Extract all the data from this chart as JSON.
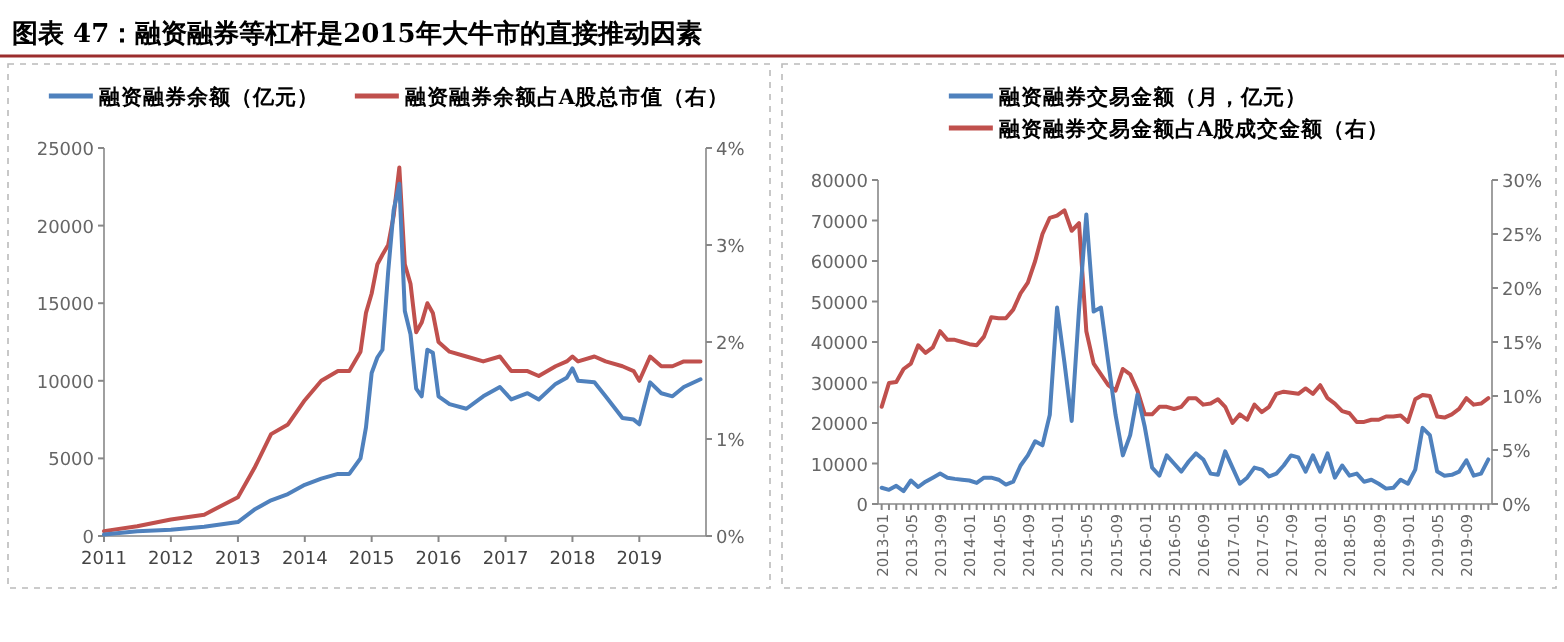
{
  "chart_data": [
    {
      "type": "line",
      "title": "图表 47：融资融券等杠杆是2015年大牛市的直接推动因素",
      "legend": "top",
      "marker": "none",
      "line_style": "solid",
      "grid": false,
      "xlim": [
        "2011-01-01",
        "2019-12-31"
      ],
      "xticks": [
        "2011",
        "2012",
        "2013",
        "2014",
        "2015",
        "2016",
        "2017",
        "2018",
        "2019"
      ],
      "ylim": [
        0,
        25000
      ],
      "yticks": [
        0,
        5000,
        10000,
        15000,
        20000,
        25000
      ],
      "y2lim": [
        0,
        4
      ],
      "y2ticks": [
        {
          "value": 0,
          "label": "0%"
        },
        {
          "value": 1,
          "label": "1%"
        },
        {
          "value": 2,
          "label": "2%"
        },
        {
          "value": 3,
          "label": "3%"
        },
        {
          "value": 4,
          "label": "4%"
        }
      ],
      "x": [
        "2011-01",
        "2011-07",
        "2012-01",
        "2012-07",
        "2013-01",
        "2013-04",
        "2013-07",
        "2013-10",
        "2014-01",
        "2014-04",
        "2014-07",
        "2014-09",
        "2014-11",
        "2014-12",
        "2015-01",
        "2015-02",
        "2015-03",
        "2015-04",
        "2015-05",
        "2015-06",
        "2015-07",
        "2015-08",
        "2015-09",
        "2015-10",
        "2015-11",
        "2015-12",
        "2016-01",
        "2016-03",
        "2016-06",
        "2016-09",
        "2016-12",
        "2017-02",
        "2017-05",
        "2017-07",
        "2017-10",
        "2017-12",
        "2018-01",
        "2018-02",
        "2018-05",
        "2018-07",
        "2018-10",
        "2018-12",
        "2019-01",
        "2019-03",
        "2019-05",
        "2019-07",
        "2019-09",
        "2019-12"
      ],
      "series": [
        {
          "name": "融资融券余额（亿元）",
          "color": "#4f81bd",
          "values": [
            100,
            300,
            400,
            600,
            900,
            1700,
            2300,
            2700,
            3300,
            3700,
            4000,
            4000,
            5000,
            7000,
            10500,
            11500,
            12000,
            17000,
            21000,
            22700,
            14500,
            13000,
            9500,
            9000,
            12000,
            11800,
            9000,
            8500,
            8200,
            9000,
            9600,
            8800,
            9200,
            8800,
            9800,
            10200,
            10800,
            10000,
            9900,
            9000,
            7600,
            7500,
            7200,
            9900,
            9200,
            9000,
            9600,
            10100
          ]
        },
        {
          "name": "融资融券余额占A股总市值（右）",
          "color": "#c0504d",
          "axis": "y2",
          "values": [
            0.05,
            0.1,
            0.17,
            0.22,
            0.4,
            0.7,
            1.05,
            1.15,
            1.4,
            1.6,
            1.7,
            1.7,
            1.9,
            2.3,
            2.5,
            2.8,
            2.9,
            3.0,
            3.3,
            3.8,
            2.8,
            2.6,
            2.1,
            2.2,
            2.4,
            2.3,
            2.0,
            1.9,
            1.85,
            1.8,
            1.85,
            1.7,
            1.7,
            1.65,
            1.75,
            1.8,
            1.85,
            1.8,
            1.85,
            1.8,
            1.75,
            1.7,
            1.6,
            1.85,
            1.75,
            1.75,
            1.8,
            1.8
          ]
        }
      ]
    },
    {
      "type": "line",
      "legend": "top",
      "marker": "none",
      "line_style": "solid",
      "grid": false,
      "categories": [
        "2013-01",
        null,
        null,
        null,
        "2013-05",
        null,
        null,
        null,
        "2013-09",
        null,
        null,
        null,
        "2014-01",
        null,
        null,
        null,
        "2014-05",
        null,
        null,
        null,
        "2014-09",
        null,
        null,
        null,
        "2015-01",
        null,
        null,
        null,
        "2015-05",
        null,
        null,
        null,
        "2015-09",
        null,
        null,
        null,
        "2016-01",
        null,
        null,
        null,
        "2016-05",
        null,
        null,
        null,
        "2016-09",
        null,
        null,
        null,
        "2017-01",
        null,
        null,
        null,
        "2017-05",
        null,
        null,
        null,
        "2017-09",
        null,
        null,
        null,
        "2018-01",
        null,
        null,
        null,
        "2018-05",
        null,
        null,
        null,
        "2018-09",
        null,
        null,
        null,
        "2019-01",
        null,
        null,
        null,
        "2019-05",
        null,
        null,
        null,
        "2019-09",
        null,
        null,
        null
      ],
      "ylim": [
        0,
        80000
      ],
      "yticks": [
        0,
        10000,
        20000,
        30000,
        40000,
        50000,
        60000,
        70000,
        80000
      ],
      "y2lim": [
        0,
        30
      ],
      "y2ticks": [
        {
          "value": 0,
          "label": "0%"
        },
        {
          "value": 5,
          "label": "5%"
        },
        {
          "value": 10,
          "label": "10%"
        },
        {
          "value": 15,
          "label": "15%"
        },
        {
          "value": 20,
          "label": "20%"
        },
        {
          "value": 25,
          "label": "25%"
        },
        {
          "value": 30,
          "label": "30%"
        }
      ],
      "series": [
        {
          "name": "融资融券交易金额（月，亿元）",
          "color": "#4f81bd",
          "values": [
            4000,
            3500,
            4500,
            3200,
            5800,
            4200,
            5500,
            6500,
            7500,
            6500,
            6200,
            6000,
            5800,
            5200,
            6500,
            6500,
            6000,
            4800,
            5500,
            9500,
            12000,
            15500,
            14500,
            22000,
            48500,
            35000,
            20500,
            48000,
            71500,
            47500,
            48500,
            35000,
            22000,
            12000,
            17000,
            27000,
            19000,
            9000,
            7000,
            12000,
            10000,
            8000,
            10500,
            12500,
            11000,
            7500,
            7200,
            13000,
            9000,
            5000,
            6500,
            9000,
            8500,
            6800,
            7500,
            9500,
            12000,
            11500,
            8000,
            12000,
            8000,
            12500,
            6500,
            9500,
            7000,
            7500,
            5500,
            6000,
            5000,
            3800,
            4000,
            6000,
            5000,
            8500,
            18800,
            17000,
            8000,
            7000,
            7200,
            8000,
            10800,
            7000,
            7500,
            11000
          ]
        },
        {
          "name": "融资融券交易金额占A股成交金额（右）",
          "color": "#c0504d",
          "axis": "y2",
          "values": [
            9,
            11.2,
            11.3,
            12.5,
            13,
            14.7,
            14,
            14.5,
            16,
            15.2,
            15.2,
            15,
            14.8,
            14.7,
            15.5,
            17.3,
            17.2,
            17.2,
            18,
            19.5,
            20.5,
            22.5,
            25,
            26.5,
            26.7,
            27.2,
            25.3,
            26,
            16,
            13,
            12,
            11,
            10.5,
            12.5,
            12,
            10.5,
            8.3,
            8.3,
            9,
            9,
            8.8,
            9,
            9.8,
            9.8,
            9.2,
            9.3,
            9.7,
            9,
            7.5,
            8.3,
            7.8,
            9.2,
            8.5,
            9,
            10.2,
            10.4,
            10.3,
            10.2,
            10.7,
            10.2,
            11,
            9.8,
            9.3,
            8.6,
            8.4,
            7.6,
            7.6,
            7.8,
            7.8,
            8.1,
            8.1,
            8.2,
            7.6,
            9.7,
            10.1,
            10,
            8.1,
            8,
            8.3,
            8.8,
            9.8,
            9.2,
            9.3,
            9.8
          ]
        }
      ]
    }
  ]
}
